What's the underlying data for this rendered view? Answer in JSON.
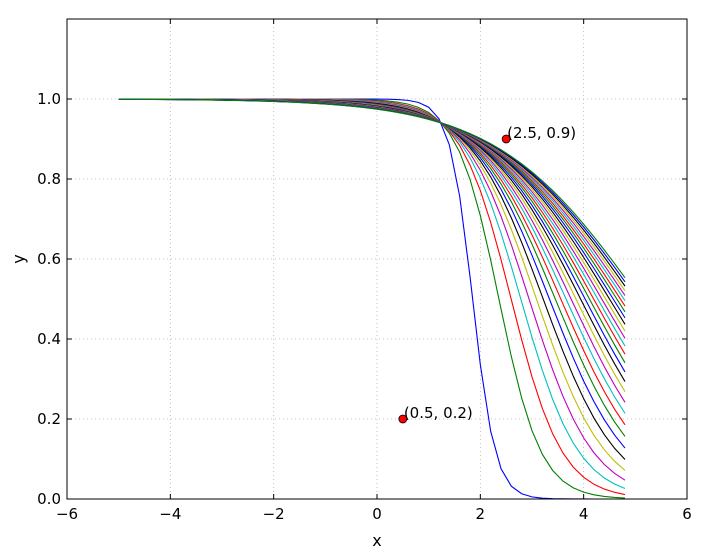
{
  "chart_data": {
    "type": "line",
    "title": "",
    "xlabel": "x",
    "ylabel": "y",
    "xlim": [
      -6,
      6
    ],
    "ylim": [
      0,
      1.2
    ],
    "grid": true,
    "grid_style": "dotted",
    "xticks": [
      -6,
      -4,
      -2,
      0,
      2,
      4,
      6
    ],
    "xtick_labels": [
      "−6",
      "−4",
      "−2",
      "0",
      "2",
      "4",
      "6"
    ],
    "yticks": [
      0,
      0.2,
      0.4,
      0.6,
      0.8,
      1.0
    ],
    "ytick_labels": [
      "0.0",
      "0.2",
      "0.4",
      "0.6",
      "0.8",
      "1.0"
    ],
    "x_range": [
      -5,
      4.8
    ],
    "x_step": 0.2,
    "curve_family": {
      "description_function": "y = 1 - 1 / (1 + exp(-(x - center) / scale))",
      "count": 30,
      "first": {
        "center": 1.85,
        "scale": 0.22
      },
      "last": {
        "center": 5.1,
        "scale": 1.4
      }
    },
    "line_colors": [
      "#0000ff",
      "#008000",
      "#ff0000",
      "#00bfbf",
      "#bf00bf",
      "#bfbf00",
      "#000000"
    ],
    "annotations": [
      {
        "x": 2.5,
        "y": 0.9,
        "label": "(2.5, 0.9)",
        "color": "#ff0000"
      },
      {
        "x": 0.5,
        "y": 0.2,
        "label": "(0.5, 0.2)",
        "color": "#ff0000"
      }
    ]
  }
}
